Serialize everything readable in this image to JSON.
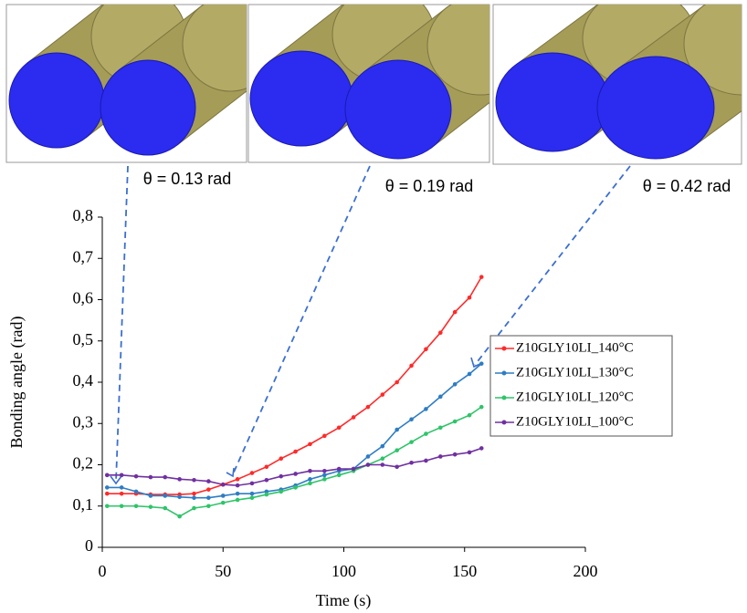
{
  "chart_data": {
    "type": "line",
    "x": [
      2,
      8,
      14,
      20,
      26,
      32,
      38,
      44,
      50,
      56,
      62,
      68,
      74,
      80,
      86,
      92,
      98,
      104,
      110,
      116,
      122,
      128,
      134,
      140,
      146,
      152,
      157
    ],
    "series": [
      {
        "name": "Z10GLY10LI_140°C",
        "color": "#ff2a2a",
        "values": [
          0.13,
          0.13,
          0.13,
          0.128,
          0.128,
          0.128,
          0.13,
          0.14,
          0.152,
          0.165,
          0.18,
          0.195,
          0.215,
          0.232,
          0.25,
          0.27,
          0.29,
          0.315,
          0.34,
          0.37,
          0.4,
          0.44,
          0.48,
          0.52,
          0.57,
          0.605,
          0.655
        ]
      },
      {
        "name": "Z10GLY10LI_130°C",
        "color": "#2e7dc4",
        "values": [
          0.145,
          0.145,
          0.135,
          0.125,
          0.125,
          0.122,
          0.12,
          0.12,
          0.125,
          0.13,
          0.13,
          0.135,
          0.14,
          0.15,
          0.165,
          0.175,
          0.185,
          0.19,
          0.22,
          0.245,
          0.285,
          0.31,
          0.335,
          0.365,
          0.395,
          0.42,
          0.445
        ]
      },
      {
        "name": "Z10GLY10LI_120°C",
        "color": "#2fc46a",
        "values": [
          0.1,
          0.1,
          0.1,
          0.098,
          0.095,
          0.075,
          0.095,
          0.1,
          0.108,
          0.115,
          0.12,
          0.128,
          0.135,
          0.145,
          0.155,
          0.165,
          0.175,
          0.185,
          0.2,
          0.215,
          0.235,
          0.255,
          0.275,
          0.29,
          0.305,
          0.32,
          0.34
        ]
      },
      {
        "name": "Z10GLY10LI_100°C",
        "color": "#7030a0",
        "values": [
          0.175,
          0.175,
          0.172,
          0.17,
          0.17,
          0.165,
          0.163,
          0.16,
          0.152,
          0.15,
          0.155,
          0.163,
          0.172,
          0.178,
          0.185,
          0.185,
          0.19,
          0.19,
          0.2,
          0.2,
          0.195,
          0.205,
          0.21,
          0.22,
          0.225,
          0.23,
          0.24
        ]
      }
    ],
    "xlabel": "Time (s)",
    "ylabel": "Bonding angle (rad)",
    "xlim": [
      0,
      200
    ],
    "xticks": [
      0,
      50,
      100,
      150,
      200
    ],
    "ylim": [
      0,
      0.8
    ],
    "yticks": [
      0,
      {
        "value": 0.1,
        "label": "0,1"
      },
      {
        "value": 0.2,
        "label": "0,2"
      },
      {
        "value": 0.3,
        "label": "0,3"
      },
      {
        "value": 0.4,
        "label": "0,4"
      },
      {
        "value": 0.5,
        "label": "0,5"
      },
      {
        "value": 0.6,
        "label": "0,6"
      },
      {
        "value": 0.7,
        "label": "0,7"
      },
      {
        "value": 0.8,
        "label": "0,8"
      }
    ],
    "annotations": [
      "θ = 0.13 rad",
      "θ = 0.19 rad",
      "θ = 0.42 rad"
    ],
    "legend": "right"
  }
}
